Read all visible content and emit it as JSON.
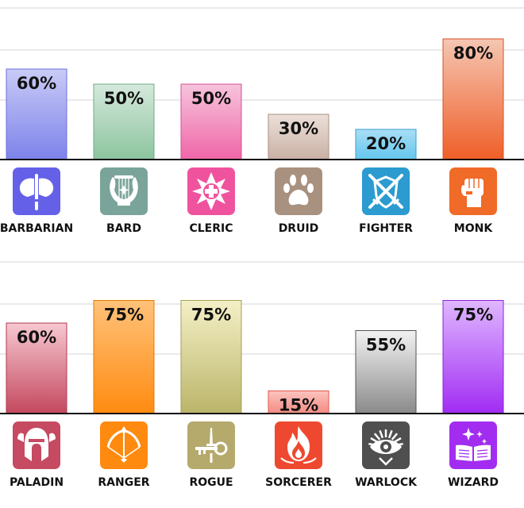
{
  "chart_data": [
    {
      "type": "bar",
      "title": "",
      "xlabel": "",
      "ylabel": "",
      "ylim": [
        0,
        100
      ],
      "grid": true,
      "categories": [
        "BARBARIAN",
        "BARD",
        "CLERIC",
        "DRUID",
        "FIGHTER",
        "MONK"
      ],
      "values": [
        60,
        50,
        50,
        30,
        20,
        80
      ],
      "value_labels": [
        "60%",
        "50%",
        "50%",
        "30%",
        "20%",
        "80%"
      ],
      "icons": [
        "double-axe-icon",
        "lyre-icon",
        "holy-cross-icon",
        "paw-print-icon",
        "crossed-swords-shield-icon",
        "raised-fist-icon"
      ],
      "colors": [
        {
          "top": "#c9cbf6",
          "bottom": "#7d82ea",
          "border": "#6c6fe0",
          "icon": "#6461e8"
        },
        {
          "top": "#d5e9dc",
          "bottom": "#8cc49e",
          "border": "#6faa84",
          "icon": "#7aa39a"
        },
        {
          "top": "#f7c4dc",
          "bottom": "#ef66a8",
          "border": "#d45190",
          "icon": "#f0539e"
        },
        {
          "top": "#ece0d9",
          "bottom": "#c9b0a4",
          "border": "#a8917f",
          "icon": "#a8917f"
        },
        {
          "top": "#a9def5",
          "bottom": "#64c6ee",
          "border": "#3a9fd0",
          "icon": "#2b9bd0"
        },
        {
          "top": "#f5c6b2",
          "bottom": "#ef5e28",
          "border": "#d85222",
          "icon": "#f06a28"
        }
      ]
    },
    {
      "type": "bar",
      "title": "",
      "xlabel": "",
      "ylabel": "",
      "ylim": [
        0,
        100
      ],
      "grid": true,
      "categories": [
        "PALADIN",
        "RANGER",
        "ROGUE",
        "SORCERER",
        "WARLOCK",
        "WIZARD"
      ],
      "values": [
        60,
        75,
        75,
        15,
        55,
        75
      ],
      "value_labels": [
        "60%",
        "75%",
        "75%",
        "15%",
        "55%",
        "75%"
      ],
      "icons": [
        "winged-helmet-icon",
        "bow-arrow-icon",
        "dagger-key-icon",
        "flame-icon",
        "all-seeing-eye-icon",
        "spellbook-icon"
      ],
      "colors": [
        {
          "top": "#f7c8d1",
          "bottom": "#c4485e",
          "border": "#b03a52",
          "icon": "#c54a62"
        },
        {
          "top": "#ffc27a",
          "bottom": "#ff8b10",
          "border": "#e87800",
          "icon": "#ff8a10"
        },
        {
          "top": "#f4f0c6",
          "bottom": "#bbb56a",
          "border": "#a39f58",
          "icon": "#b5a96c"
        },
        {
          "top": "#fcc4bf",
          "bottom": "#f28b82",
          "border": "#e0584c",
          "icon": "#ee4930"
        },
        {
          "top": "#f2f2f2",
          "bottom": "#8a8a8a",
          "border": "#555555",
          "icon": "#4f4f4f"
        },
        {
          "top": "#dfb7ff",
          "bottom": "#a12cf3",
          "border": "#8e1ee0",
          "icon": "#a22df0"
        }
      ]
    }
  ]
}
